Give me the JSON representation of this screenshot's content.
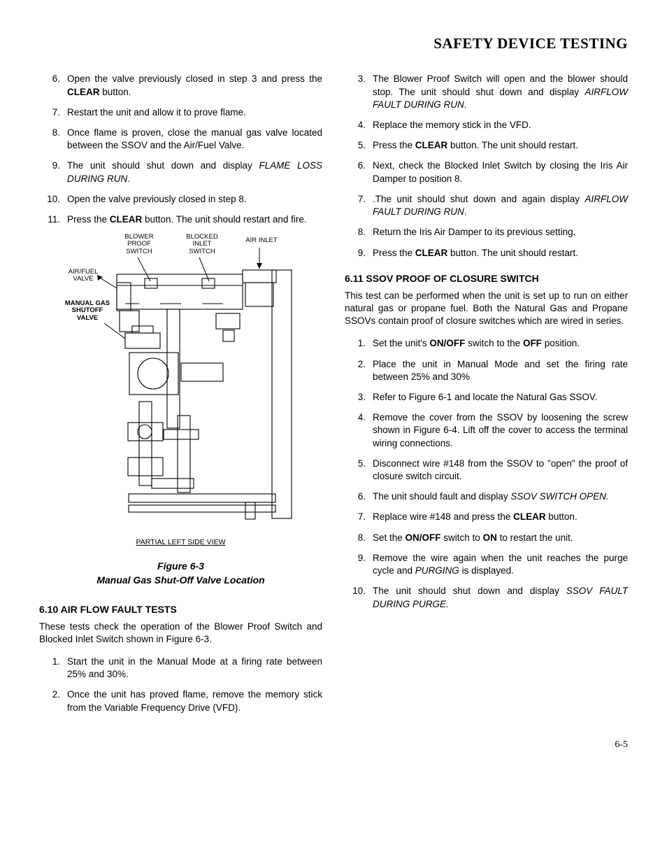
{
  "header": {
    "title": "SAFETY DEVICE TESTING"
  },
  "left": {
    "steps_a": [
      {
        "n": "6.",
        "t": "Open the valve previously closed in step 3 and press the <b>CLEAR</b> button."
      },
      {
        "n": "7.",
        "t": "Restart the unit and allow it to prove flame."
      },
      {
        "n": "8.",
        "t": "Once flame is proven, close the manual gas valve located between the SSOV and the Air/Fuel Valve."
      },
      {
        "n": "9.",
        "t": "The unit should shut down and display <i>FLAME LOSS DURING RUN</i>."
      },
      {
        "n": "10.",
        "t": "Open the valve previously closed in step 8."
      },
      {
        "n": "11.",
        "t": "Press the <b>CLEAR</b> button. The unit should restart and fire."
      }
    ],
    "figure": {
      "callouts": {
        "blower_proof_switch": "BLOWER\nPROOF\nSWITCH",
        "blocked_inlet_switch": "BLOCKED\nINLET\nSWITCH",
        "air_inlet": "AIR INLET",
        "air_fuel_valve": "AIR/FUEL\nVALVE",
        "manual_gas_shutoff_valve": "MANUAL GAS\nSHUTOFF\nVALVE"
      },
      "view_label": "PARTIAL LEFT SIDE VIEW",
      "caption_line1": "Figure 6-3",
      "caption_line2": "Manual Gas Shut-Off Valve Location"
    },
    "section_610_title": "6.10  AIR FLOW FAULT TESTS",
    "section_610_intro": "These tests check the operation of the Blower Proof Switch and Blocked Inlet Switch shown in Figure 6-3.",
    "steps_610": [
      {
        "n": "1.",
        "t": "Start the unit in the Manual Mode at a firing rate between 25% and 30%."
      },
      {
        "n": "2.",
        "t": "Once the unit has proved flame, remove the memory stick from the Variable Frequency Drive (VFD)."
      }
    ]
  },
  "right": {
    "steps_b": [
      {
        "n": "3.",
        "t": "The Blower Proof Switch will open and the blower should stop. The unit should shut down and display <i>AIRFLOW FAULT DURING RUN</i>."
      },
      {
        "n": "4.",
        "t": "Replace the memory stick in the VFD."
      },
      {
        "n": "5.",
        "t": " Press the <b>CLEAR</b> button. The unit should restart."
      },
      {
        "n": "6.",
        "t": "Next, check the Blocked Inlet Switch by closing the Iris Air Damper to position 8."
      },
      {
        "n": "7.",
        "t": ".The unit should shut down and again display <i>AIRFLOW FAULT DURING RUN</i>."
      },
      {
        "n": "8.",
        "t": "Return the Iris Air Damper to its previous setting."
      },
      {
        "n": "9.",
        "t": "Press the <b>CLEAR</b> button. The unit should restart."
      }
    ],
    "section_611_title": "6.11  SSOV PROOF OF CLOSURE SWITCH",
    "section_611_intro": "This test can be performed when the unit is set up to run on either natural gas or propane fuel. Both the Natural Gas and Propane SSOVs contain proof of closure switches which are wired in series.",
    "steps_611": [
      {
        "n": "1.",
        "t": "Set the unit's <b>ON/OFF</b> switch to the <b>OFF</b> position."
      },
      {
        "n": "2.",
        "t": "Place the unit in Manual Mode and set the firing rate between 25% and 30%"
      },
      {
        "n": "3.",
        "t": "Refer to Figure 6-1 and locate the Natural Gas SSOV."
      },
      {
        "n": "4.",
        "t": "Remove the cover from the SSOV by loosening the screw shown in Figure 6-4. Lift off the cover to access the terminal wiring connections."
      },
      {
        "n": "5.",
        "t": "Disconnect wire #148 from the SSOV to \"open\" the proof of closure switch circuit."
      },
      {
        "n": "6.",
        "t": "The unit should fault and display <i>SSOV SWITCH OPEN.</i>"
      },
      {
        "n": "7.",
        "t": "Replace wire #148 and press the <b>CLEAR</b> button."
      },
      {
        "n": "8.",
        "t": "Set the <b>ON/OFF</b> switch to <b>ON</b> to restart the unit."
      },
      {
        "n": "9.",
        "t": "Remove the wire again when the unit reaches the purge cycle and <i>PURGING</i> is displayed."
      },
      {
        "n": "10.",
        "t": "The unit should shut down and display <i>SSOV FAULT DURING PURGE.</i>"
      }
    ]
  },
  "page_number": "6-5"
}
